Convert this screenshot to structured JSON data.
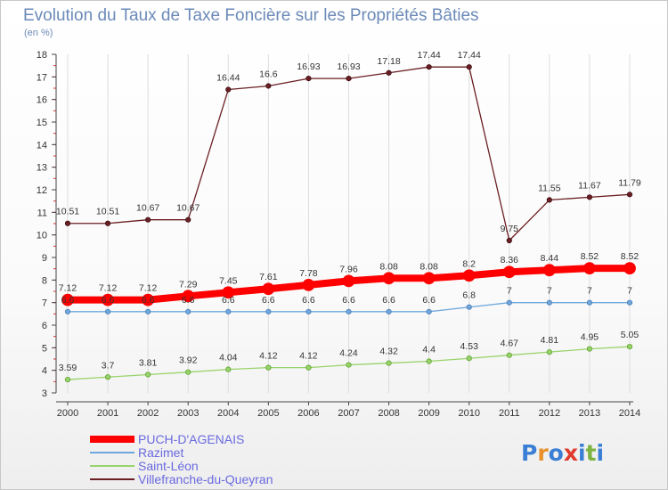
{
  "chart_data": {
    "type": "line",
    "title": "Evolution du Taux de Taxe Foncière sur les Propriétés Bâties",
    "subtitle": "(en %)",
    "xlabel": "",
    "ylabel": "",
    "ylim": [
      3,
      18
    ],
    "yticks": [
      "3",
      "4",
      "5",
      "6",
      "7",
      "8",
      "9",
      "10",
      "11",
      "12",
      "13",
      "14",
      "15",
      "16",
      "17",
      "18"
    ],
    "categories": [
      "2000",
      "2001",
      "2002",
      "2003",
      "2004",
      "2005",
      "2006",
      "2007",
      "2008",
      "2009",
      "2010",
      "2011",
      "2012",
      "2013",
      "2014"
    ],
    "series": [
      {
        "name": "Villefranche-du-Queyran",
        "color": "#6b1f24",
        "values": [
          10.51,
          10.51,
          10.67,
          10.67,
          16.44,
          16.6,
          16.93,
          16.93,
          17.18,
          17.44,
          17.44,
          9.75,
          11.55,
          11.67,
          11.79
        ],
        "labels": [
          "10.51",
          "10.51",
          "10.67",
          "10.67",
          "16.44",
          "16.6",
          "16.93",
          "16.93",
          "17.18",
          "17.44",
          "17.44",
          "9.75",
          "11.55",
          "11.67",
          "11.79"
        ]
      },
      {
        "name": "Saint-Léon",
        "color": "#99d36b",
        "values": [
          3.59,
          3.7,
          3.81,
          3.92,
          4.04,
          4.12,
          4.12,
          4.24,
          4.32,
          4.4,
          4.53,
          4.67,
          4.81,
          4.95,
          5.05
        ],
        "labels": [
          "3.59",
          "3.7",
          "3.81",
          "3.92",
          "4.04",
          "4.12",
          "4.12",
          "4.24",
          "4.32",
          "4.4",
          "4.53",
          "4.67",
          "4.81",
          "4.95",
          "5.05"
        ]
      },
      {
        "name": "Razimet",
        "color": "#6fa8dc",
        "values": [
          6.6,
          6.6,
          6.6,
          6.6,
          6.6,
          6.6,
          6.6,
          6.6,
          6.6,
          6.6,
          6.8,
          7,
          7,
          7,
          7
        ],
        "labels": [
          "6.6",
          "6.6",
          "6.6",
          "6.6",
          "6.6",
          "6.6",
          "6.6",
          "6.6",
          "6.6",
          "6.6",
          "6.8",
          "7",
          "7",
          "7",
          "7"
        ]
      },
      {
        "name": "PUCH-D'AGENAIS",
        "color": "#ff0000",
        "values": [
          7.12,
          7.12,
          7.12,
          7.29,
          7.45,
          7.61,
          7.78,
          7.96,
          8.08,
          8.08,
          8.2,
          8.36,
          8.44,
          8.52,
          8.52
        ],
        "labels": [
          "7.12",
          "7.12",
          "7.12",
          "7.29",
          "7.45",
          "7.61",
          "7.78",
          "7.96",
          "8.08",
          "8.08",
          "8.2",
          "8.36",
          "8.44",
          "8.52",
          "8.52"
        ]
      }
    ],
    "legend": [
      "PUCH-D'AGENAIS",
      "Razimet",
      "Saint-Léon",
      "Villefranche-du-Queyran"
    ],
    "legend_position": "bottom-left"
  },
  "branding": {
    "logo_letters": [
      "P",
      "r",
      "o",
      "x",
      "i",
      "t",
      "i"
    ],
    "logo_colors": [
      "#3a7fd5",
      "#e8912d",
      "#3a7fd5",
      "#e03a2d",
      "#3a7fd5",
      "#7cb342",
      "#3a7fd5"
    ]
  }
}
